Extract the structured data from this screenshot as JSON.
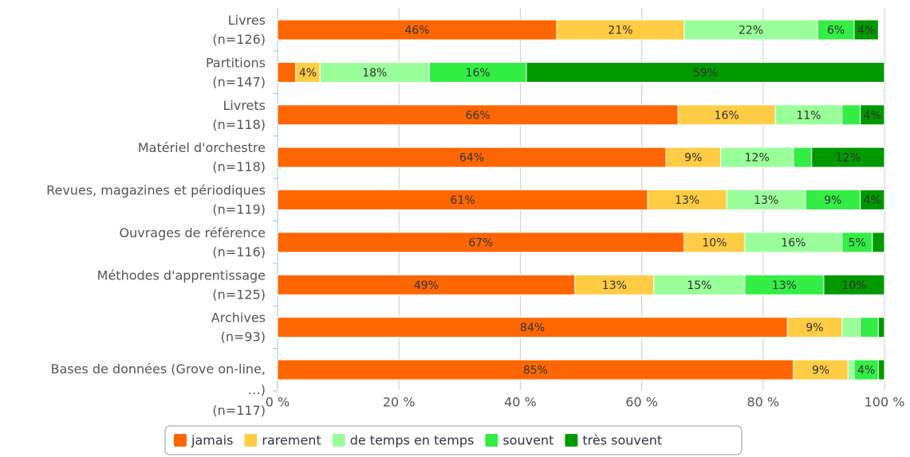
{
  "chart_data": {
    "type": "stacked_bar_horizontal",
    "categories": [
      [
        "Livres",
        "(n=126)"
      ],
      [
        "Partitions",
        "(n=147)"
      ],
      [
        "Livrets",
        "(n=118)"
      ],
      [
        "Matériel d'orchestre",
        "(n=118)"
      ],
      [
        "Revues, magazines et périodiques",
        "(n=119)"
      ],
      [
        "Ouvrages de référence",
        "(n=116)"
      ],
      [
        "Méthodes d'apprentissage",
        "(n=125)"
      ],
      [
        "Archives",
        "(n=93)"
      ],
      [
        "Bases de données (Grove on-line,",
        "…)",
        "(n=117)"
      ]
    ],
    "series": [
      {
        "name": "jamais",
        "color": "#ff6600",
        "values": [
          46,
          3,
          66,
          64,
          61,
          67,
          49,
          84,
          85
        ],
        "value_labels": [
          "46%",
          null,
          "66%",
          "64%",
          "61%",
          "67%",
          "49%",
          "84%",
          "85%"
        ]
      },
      {
        "name": "rarement",
        "color": "#ffcc44",
        "values": [
          21,
          4,
          16,
          9,
          13,
          10,
          13,
          9,
          9
        ],
        "value_labels": [
          "21%",
          "4%",
          "16%",
          "9%",
          "13%",
          "10%",
          "13%",
          "9%",
          "9%"
        ]
      },
      {
        "name": "de temps en temps",
        "color": "#99ff99",
        "values": [
          22,
          18,
          11,
          12,
          13,
          16,
          15,
          3,
          1
        ],
        "value_labels": [
          "22%",
          "18%",
          "11%",
          "12%",
          "13%",
          "16%",
          "15%",
          null,
          null
        ]
      },
      {
        "name": "souvent",
        "color": "#33ee44",
        "values": [
          6,
          16,
          3,
          3,
          9,
          5,
          13,
          3,
          4
        ],
        "value_labels": [
          "6%",
          "16%",
          null,
          null,
          "9%",
          "5%",
          "13%",
          null,
          "4%"
        ]
      },
      {
        "name": "très souvent",
        "color": "#009900",
        "values": [
          4,
          59,
          4,
          12,
          4,
          2,
          10,
          1,
          1
        ],
        "value_labels": [
          "4%",
          "59%",
          "4%",
          "12%",
          "4%",
          null,
          "10%",
          null,
          null
        ]
      }
    ],
    "xlim": [
      0,
      100
    ],
    "xticks": [
      {
        "value": 0,
        "label": "0 %"
      },
      {
        "value": 20,
        "label": "20 %"
      },
      {
        "value": 40,
        "label": "40 %"
      },
      {
        "value": 60,
        "label": "60 %"
      },
      {
        "value": 80,
        "label": "80 %"
      },
      {
        "value": 100,
        "label": "100 %"
      }
    ],
    "grid": true,
    "legend": "bottom"
  }
}
